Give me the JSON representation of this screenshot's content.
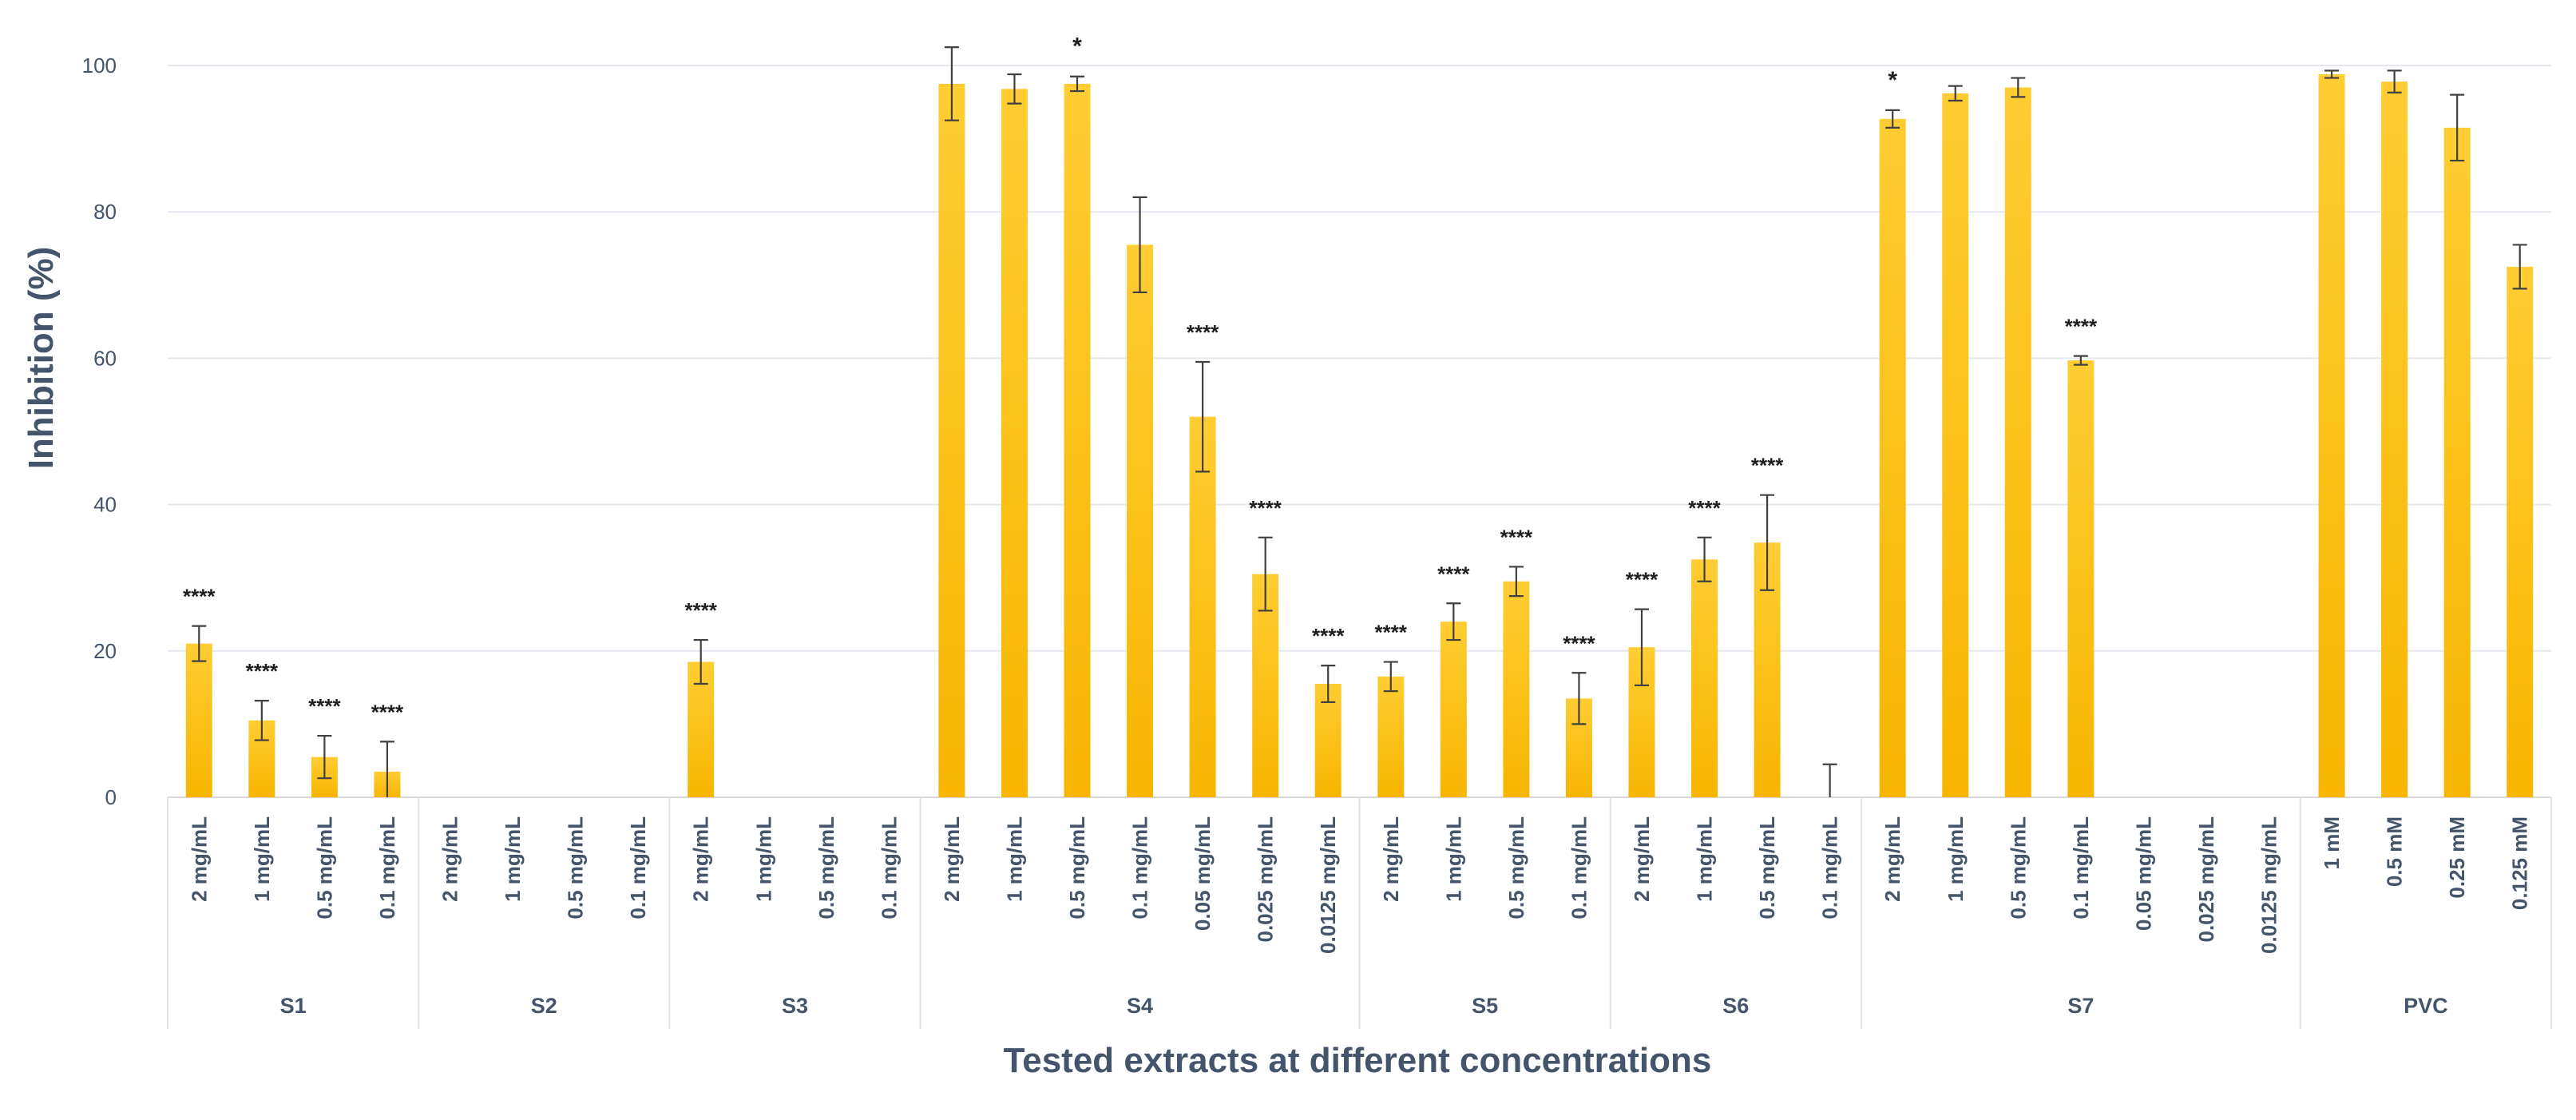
{
  "chart_data": {
    "type": "bar",
    "title": "",
    "xlabel": "Tested extracts at different concentrations",
    "ylabel": "Inhibition (%)",
    "ylim": [
      0,
      100
    ],
    "yticks": [
      0,
      20,
      40,
      60,
      80,
      100
    ],
    "grid": true,
    "bar_color": "#ffc000",
    "bar_color_top": "#ffcd33",
    "bar_color_bottom": "#f7b500",
    "error_color": "#404040",
    "axis_text_color": "#44546a",
    "groups": [
      {
        "name": "S1",
        "items": [
          {
            "label": "2 mg/mL",
            "value": 21,
            "err": 2.4,
            "sig": "****"
          },
          {
            "label": "1 mg/mL",
            "value": 10.5,
            "err": 2.7,
            "sig": "****"
          },
          {
            "label": "0.5 mg/mL",
            "value": 5.5,
            "err": 2.9,
            "sig": "****"
          },
          {
            "label": "0.1 mg/mL",
            "value": 3.5,
            "err": 4.1,
            "sig": "****"
          }
        ]
      },
      {
        "name": "S2",
        "items": [
          {
            "label": "2 mg/mL",
            "value": 0,
            "err": 0,
            "sig": ""
          },
          {
            "label": "1 mg/mL",
            "value": 0,
            "err": 0,
            "sig": ""
          },
          {
            "label": "0.5 mg/mL",
            "value": 0,
            "err": 0,
            "sig": ""
          },
          {
            "label": "0.1 mg/mL",
            "value": 0,
            "err": 0,
            "sig": ""
          }
        ]
      },
      {
        "name": "S3",
        "items": [
          {
            "label": "2 mg/mL",
            "value": 18.5,
            "err": 3,
            "sig": "****"
          },
          {
            "label": "1 mg/mL",
            "value": 0,
            "err": 0,
            "sig": ""
          },
          {
            "label": "0.5 mg/mL",
            "value": 0,
            "err": 0,
            "sig": ""
          },
          {
            "label": "0.1 mg/mL",
            "value": 0,
            "err": 0,
            "sig": ""
          }
        ]
      },
      {
        "name": "S4",
        "items": [
          {
            "label": "2 mg/mL",
            "value": 97.5,
            "err": 5,
            "sig": ""
          },
          {
            "label": "1 mg/mL",
            "value": 96.8,
            "err": 2,
            "sig": ""
          },
          {
            "label": "0.5 mg/mL",
            "value": 97.5,
            "err": 1,
            "sig": "*"
          },
          {
            "label": "0.1 mg/mL",
            "value": 75.5,
            "err": 6.5,
            "sig": ""
          },
          {
            "label": "0.05 mg/mL",
            "value": 52,
            "err": 7.5,
            "sig": "****"
          },
          {
            "label": "0.025 mg/mL",
            "value": 30.5,
            "err": 5,
            "sig": "****"
          },
          {
            "label": "0.0125 mg/mL",
            "value": 15.5,
            "err": 2.5,
            "sig": "****"
          }
        ]
      },
      {
        "name": "S5",
        "items": [
          {
            "label": "2 mg/mL",
            "value": 16.5,
            "err": 2,
            "sig": "****"
          },
          {
            "label": "1 mg/mL",
            "value": 24,
            "err": 2.5,
            "sig": "****"
          },
          {
            "label": "0.5 mg/mL",
            "value": 29.5,
            "err": 2,
            "sig": "****"
          },
          {
            "label": "0.1 mg/mL",
            "value": 13.5,
            "err": 3.5,
            "sig": "****"
          }
        ]
      },
      {
        "name": "S6",
        "items": [
          {
            "label": "2 mg/mL",
            "value": 20.5,
            "err": 5.2,
            "sig": "****"
          },
          {
            "label": "1 mg/mL",
            "value": 32.5,
            "err": 3,
            "sig": "****"
          },
          {
            "label": "0.5 mg/mL",
            "value": 34.8,
            "err": 6.5,
            "sig": "****"
          },
          {
            "label": "0.1 mg/mL",
            "value": 0,
            "err": 4.5,
            "sig": ""
          }
        ]
      },
      {
        "name": "S7",
        "items": [
          {
            "label": "2 mg/mL",
            "value": 92.7,
            "err": 1.2,
            "sig": "*"
          },
          {
            "label": "1 mg/mL",
            "value": 96.2,
            "err": 1,
            "sig": ""
          },
          {
            "label": "0.5 mg/mL",
            "value": 97,
            "err": 1.3,
            "sig": ""
          },
          {
            "label": "0.1 mg/mL",
            "value": 59.7,
            "err": 0.6,
            "sig": "****"
          },
          {
            "label": "0.05 mg/mL",
            "value": 0,
            "err": 0,
            "sig": ""
          },
          {
            "label": "0.025 mg/mL",
            "value": 0,
            "err": 0,
            "sig": ""
          },
          {
            "label": "0.0125 mg/mL",
            "value": 0,
            "err": 0,
            "sig": ""
          }
        ]
      },
      {
        "name": "PVC",
        "items": [
          {
            "label": "1 mM",
            "value": 98.8,
            "err": 0.5,
            "sig": ""
          },
          {
            "label": "0.5 mM",
            "value": 97.8,
            "err": 1.5,
            "sig": ""
          },
          {
            "label": "0.25 mM",
            "value": 91.5,
            "err": 4.5,
            "sig": ""
          },
          {
            "label": "0.125 mM",
            "value": 72.5,
            "err": 3,
            "sig": ""
          }
        ]
      }
    ]
  }
}
